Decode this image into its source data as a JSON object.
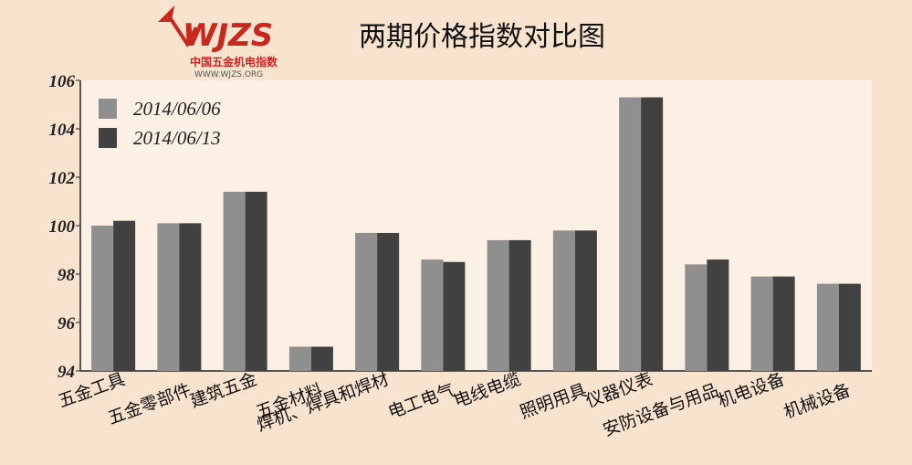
{
  "logo": {
    "brand": "WJZS",
    "name": "中国五金机电指数",
    "url": "WWW.WJZS.ORG"
  },
  "chart_data": {
    "type": "bar",
    "title": "两期价格指数对比图",
    "categories": [
      "五金工具",
      "五金零部件",
      "建筑五金",
      "五金材料",
      "焊机、焊具和焊材",
      "电工电气",
      "电线电缆",
      "照明用具",
      "仪器仪表",
      "安防设备与用品",
      "机电设备",
      "机械设备"
    ],
    "series": [
      {
        "name": "2014/06/06",
        "color": "#8f8f8f",
        "values": [
          100.0,
          100.1,
          101.4,
          95.0,
          99.7,
          98.6,
          99.4,
          99.8,
          105.3,
          98.4,
          97.9,
          97.6
        ]
      },
      {
        "name": "2014/06/13",
        "color": "#414141",
        "values": [
          100.2,
          100.1,
          101.4,
          95.0,
          99.7,
          98.5,
          99.4,
          99.8,
          105.3,
          98.6,
          97.9,
          97.6
        ]
      }
    ],
    "ylim": [
      94,
      106
    ],
    "yticks": [
      94,
      96,
      98,
      100,
      102,
      104,
      106
    ],
    "legend": "upper left"
  }
}
